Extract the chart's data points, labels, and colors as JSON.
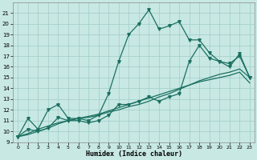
{
  "xlabel": "Humidex (Indice chaleur)",
  "x": [
    0,
    1,
    2,
    3,
    4,
    5,
    6,
    7,
    8,
    9,
    10,
    11,
    12,
    13,
    14,
    15,
    16,
    17,
    18,
    19,
    20,
    21,
    22,
    23
  ],
  "line1_jagged": [
    9.5,
    11.2,
    10.2,
    12.0,
    12.5,
    11.2,
    11.2,
    11.0,
    11.5,
    13.5,
    16.5,
    19.0,
    20.0,
    21.3,
    19.5,
    19.8,
    20.2,
    18.5,
    18.5,
    17.3,
    16.5,
    16.3,
    17.0,
    15.0
  ],
  "line2_zigzag": [
    9.5,
    10.2,
    10.0,
    10.3,
    11.3,
    11.0,
    11.0,
    10.8,
    11.0,
    11.5,
    12.5,
    12.5,
    12.8,
    13.2,
    12.8,
    13.2,
    13.5,
    16.5,
    18.0,
    16.8,
    16.5,
    16.0,
    17.2,
    15.0
  ],
  "line3_trend1": [
    9.5,
    9.8,
    10.2,
    10.5,
    10.8,
    11.0,
    11.2,
    11.3,
    11.5,
    11.8,
    12.0,
    12.3,
    12.5,
    12.8,
    13.2,
    13.5,
    13.9,
    14.3,
    14.7,
    15.0,
    15.3,
    15.5,
    15.8,
    15.0
  ],
  "line4_trend2": [
    9.5,
    9.7,
    10.0,
    10.3,
    10.7,
    11.0,
    11.2,
    11.4,
    11.6,
    11.9,
    12.2,
    12.5,
    12.8,
    13.1,
    13.4,
    13.7,
    14.0,
    14.3,
    14.6,
    14.8,
    15.0,
    15.2,
    15.5,
    14.5
  ],
  "line_color": "#1a7060",
  "bg_color": "#c8e8e4",
  "grid_color": "#a0ccc8",
  "ylim_min": 9,
  "ylim_max": 22,
  "xlim_min": 0,
  "xlim_max": 23
}
